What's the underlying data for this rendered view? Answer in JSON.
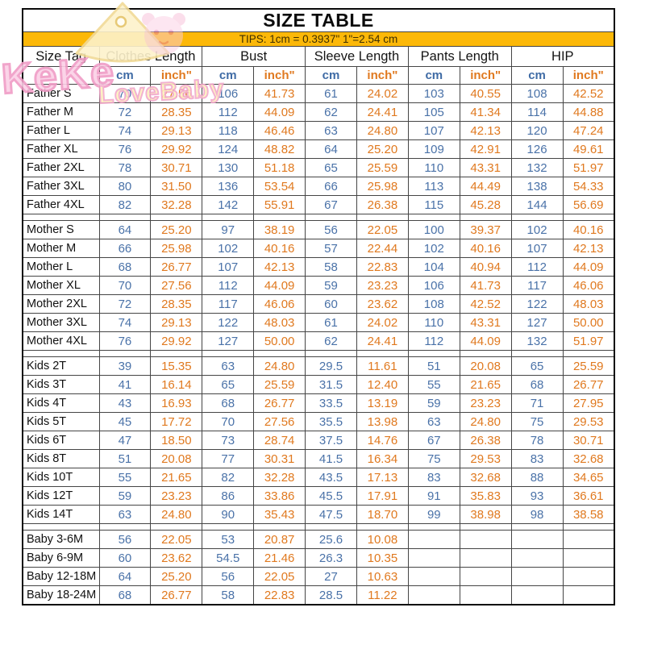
{
  "watermark": {
    "primary": "KeKe",
    "secondary": "LoveBaby"
  },
  "header": {
    "title": "SIZE TABLE"
  },
  "tips": {
    "text": "TIPS: 1cm = 0.3937\"   1\"=2.54 cm"
  },
  "colors": {
    "tips_bg": "#FCB808",
    "cm_text": "#4A72A8",
    "inch_text": "#E0791F"
  },
  "chart_data": {
    "type": "table",
    "title": "SIZE TABLE",
    "columns": [
      "Size Tag",
      "Clothes Length",
      "Bust",
      "Sleeve Length",
      "Pants Length",
      "HIP"
    ],
    "units": [
      "cm",
      "inch\""
    ],
    "sections": [
      {
        "name": "Father",
        "rows": [
          {
            "tag": "Father S",
            "values": [
              "70",
              "27.56",
              "106",
              "41.73",
              "61",
              "24.02",
              "103",
              "40.55",
              "108",
              "42.52"
            ]
          },
          {
            "tag": "Father M",
            "values": [
              "72",
              "28.35",
              "112",
              "44.09",
              "62",
              "24.41",
              "105",
              "41.34",
              "114",
              "44.88"
            ]
          },
          {
            "tag": "Father L",
            "values": [
              "74",
              "29.13",
              "118",
              "46.46",
              "63",
              "24.80",
              "107",
              "42.13",
              "120",
              "47.24"
            ]
          },
          {
            "tag": "Father XL",
            "values": [
              "76",
              "29.92",
              "124",
              "48.82",
              "64",
              "25.20",
              "109",
              "42.91",
              "126",
              "49.61"
            ]
          },
          {
            "tag": "Father 2XL",
            "values": [
              "78",
              "30.71",
              "130",
              "51.18",
              "65",
              "25.59",
              "110",
              "43.31",
              "132",
              "51.97"
            ]
          },
          {
            "tag": "Father 3XL",
            "values": [
              "80",
              "31.50",
              "136",
              "53.54",
              "66",
              "25.98",
              "113",
              "44.49",
              "138",
              "54.33"
            ]
          },
          {
            "tag": "Father 4XL",
            "values": [
              "82",
              "32.28",
              "142",
              "55.91",
              "67",
              "26.38",
              "115",
              "45.28",
              "144",
              "56.69"
            ]
          }
        ]
      },
      {
        "name": "Mother",
        "rows": [
          {
            "tag": "Mother S",
            "values": [
              "64",
              "25.20",
              "97",
              "38.19",
              "56",
              "22.05",
              "100",
              "39.37",
              "102",
              "40.16"
            ]
          },
          {
            "tag": "Mother M",
            "values": [
              "66",
              "25.98",
              "102",
              "40.16",
              "57",
              "22.44",
              "102",
              "40.16",
              "107",
              "42.13"
            ]
          },
          {
            "tag": "Mother L",
            "values": [
              "68",
              "26.77",
              "107",
              "42.13",
              "58",
              "22.83",
              "104",
              "40.94",
              "112",
              "44.09"
            ]
          },
          {
            "tag": "Mother XL",
            "values": [
              "70",
              "27.56",
              "112",
              "44.09",
              "59",
              "23.23",
              "106",
              "41.73",
              "117",
              "46.06"
            ]
          },
          {
            "tag": "Mother 2XL",
            "values": [
              "72",
              "28.35",
              "117",
              "46.06",
              "60",
              "23.62",
              "108",
              "42.52",
              "122",
              "48.03"
            ]
          },
          {
            "tag": "Mother 3XL",
            "values": [
              "74",
              "29.13",
              "122",
              "48.03",
              "61",
              "24.02",
              "110",
              "43.31",
              "127",
              "50.00"
            ]
          },
          {
            "tag": "Mother 4XL",
            "values": [
              "76",
              "29.92",
              "127",
              "50.00",
              "62",
              "24.41",
              "112",
              "44.09",
              "132",
              "51.97"
            ]
          }
        ]
      },
      {
        "name": "Kids",
        "rows": [
          {
            "tag": "Kids 2T",
            "values": [
              "39",
              "15.35",
              "63",
              "24.80",
              "29.5",
              "11.61",
              "51",
              "20.08",
              "65",
              "25.59"
            ]
          },
          {
            "tag": "Kids 3T",
            "values": [
              "41",
              "16.14",
              "65",
              "25.59",
              "31.5",
              "12.40",
              "55",
              "21.65",
              "68",
              "26.77"
            ]
          },
          {
            "tag": "Kids 4T",
            "values": [
              "43",
              "16.93",
              "68",
              "26.77",
              "33.5",
              "13.19",
              "59",
              "23.23",
              "71",
              "27.95"
            ]
          },
          {
            "tag": "Kids 5T",
            "values": [
              "45",
              "17.72",
              "70",
              "27.56",
              "35.5",
              "13.98",
              "63",
              "24.80",
              "75",
              "29.53"
            ]
          },
          {
            "tag": "Kids 6T",
            "values": [
              "47",
              "18.50",
              "73",
              "28.74",
              "37.5",
              "14.76",
              "67",
              "26.38",
              "78",
              "30.71"
            ]
          },
          {
            "tag": "Kids 8T",
            "values": [
              "51",
              "20.08",
              "77",
              "30.31",
              "41.5",
              "16.34",
              "75",
              "29.53",
              "83",
              "32.68"
            ]
          },
          {
            "tag": "Kids 10T",
            "values": [
              "55",
              "21.65",
              "82",
              "32.28",
              "43.5",
              "17.13",
              "83",
              "32.68",
              "88",
              "34.65"
            ]
          },
          {
            "tag": "Kids 12T",
            "values": [
              "59",
              "23.23",
              "86",
              "33.86",
              "45.5",
              "17.91",
              "91",
              "35.83",
              "93",
              "36.61"
            ]
          },
          {
            "tag": "Kids 14T",
            "values": [
              "63",
              "24.80",
              "90",
              "35.43",
              "47.5",
              "18.70",
              "99",
              "38.98",
              "98",
              "38.58"
            ]
          }
        ]
      },
      {
        "name": "Baby",
        "rows": [
          {
            "tag": "Baby 3-6M",
            "values": [
              "56",
              "22.05",
              "53",
              "20.87",
              "25.6",
              "10.08",
              "",
              "",
              "",
              ""
            ]
          },
          {
            "tag": "Baby 6-9M",
            "values": [
              "60",
              "23.62",
              "54.5",
              "21.46",
              "26.3",
              "10.35",
              "",
              "",
              "",
              ""
            ]
          },
          {
            "tag": "Baby 12-18M",
            "values": [
              "64",
              "25.20",
              "56",
              "22.05",
              "27",
              "10.63",
              "",
              "",
              "",
              ""
            ]
          },
          {
            "tag": "Baby 18-24M",
            "values": [
              "68",
              "26.77",
              "58",
              "22.83",
              "28.5",
              "11.22",
              "",
              "",
              "",
              ""
            ]
          }
        ]
      }
    ]
  }
}
